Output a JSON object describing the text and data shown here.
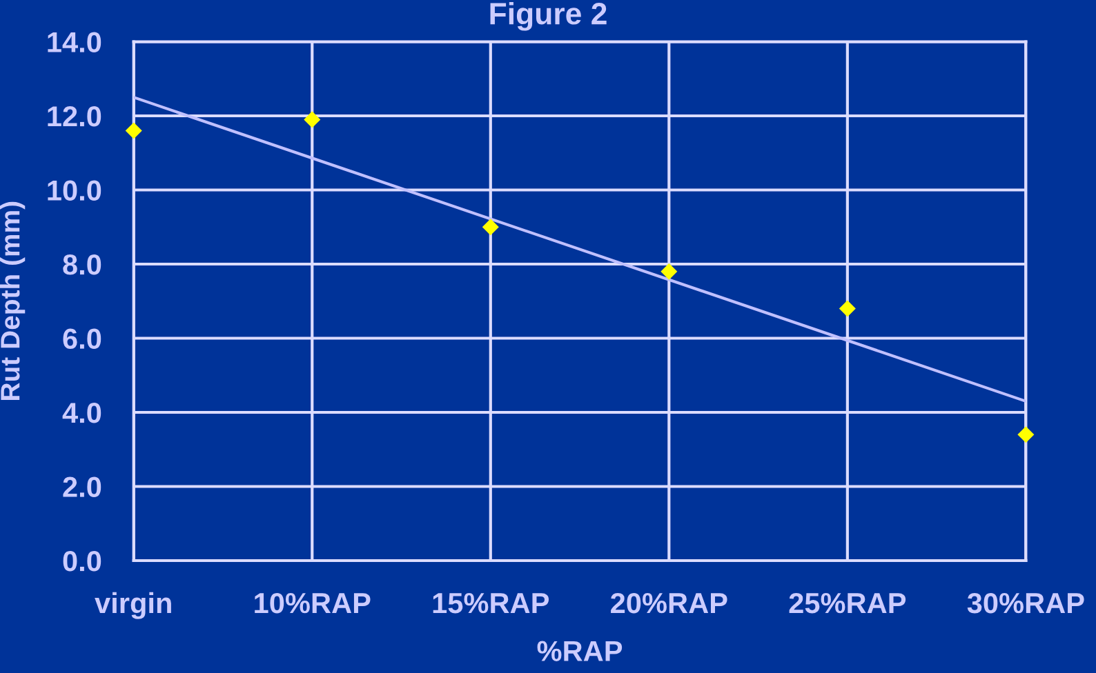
{
  "chart_data": {
    "type": "scatter",
    "title": "Figure 2",
    "xlabel": "%RAP",
    "ylabel": "Rut Depth (mm)",
    "categories": [
      "virgin",
      "10%RAP",
      "15%RAP",
      "20%RAP",
      "25%RAP",
      "30%RAP"
    ],
    "series": [
      {
        "color": "#ffff00",
        "marker": "diamond",
        "values": [
          11.6,
          11.9,
          9.0,
          7.8,
          6.8,
          3.4
        ]
      },
      {
        "type": "line",
        "color": "#c0c0ff",
        "line_style": "solid",
        "x": [
          "virgin",
          "30%RAP"
        ],
        "values": [
          12.5,
          4.3
        ]
      }
    ],
    "ylim": [
      0,
      14
    ],
    "yticks": [
      {
        "value": 0,
        "label": "0.0"
      },
      {
        "value": 2,
        "label": "2.0"
      },
      {
        "value": 4,
        "label": "4.0"
      },
      {
        "value": 6,
        "label": "6.0"
      },
      {
        "value": 8,
        "label": "8.0"
      },
      {
        "value": 10,
        "label": "10.0"
      },
      {
        "value": 12,
        "label": "12.0"
      },
      {
        "value": 14,
        "label": "14.0"
      }
    ],
    "grid": true
  }
}
